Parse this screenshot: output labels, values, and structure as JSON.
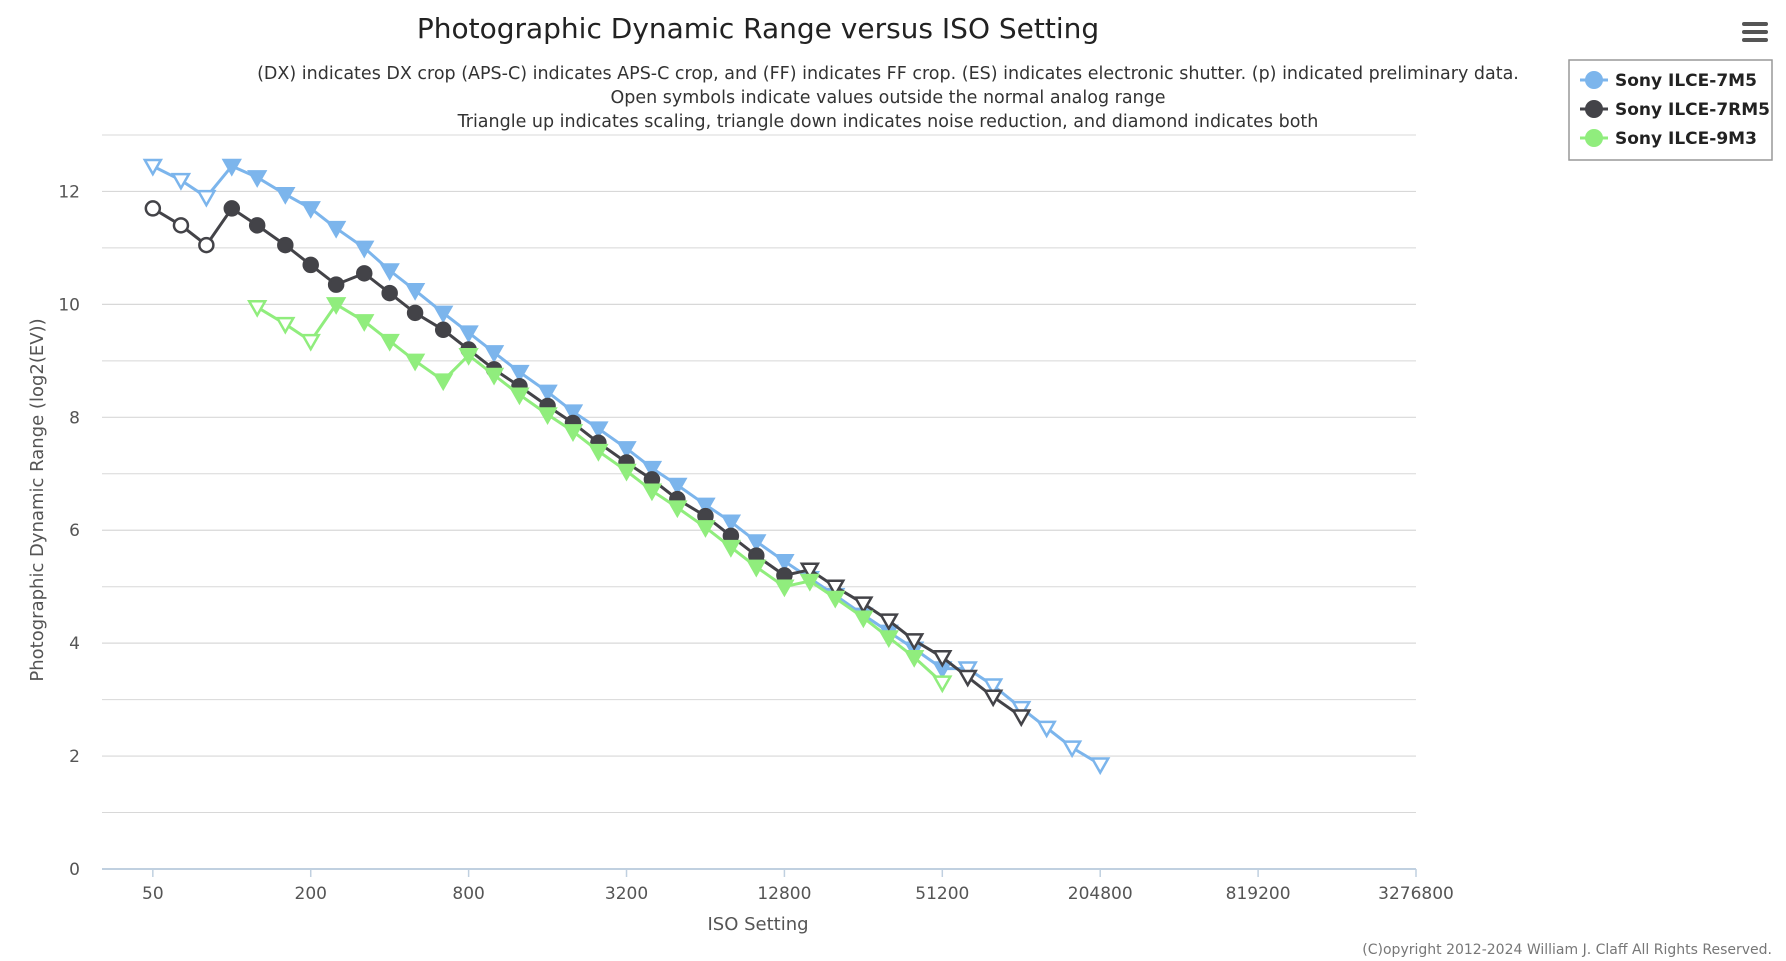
{
  "colors": {
    "grid": "#d8d8d8",
    "axis": "#c0d0e0",
    "legend_border": "#999999"
  },
  "menu": {
    "icon": "hamburger-menu-icon"
  },
  "credit": "(C)opyright 2012-2024 William J. Claff All Rights Reserved.",
  "chart_data": {
    "type": "line",
    "title": "Photographic Dynamic Range versus ISO Setting",
    "subtitle": [
      "(DX) indicates DX crop (APS-C) indicates APS-C crop, and (FF) indicates FF crop. (ES) indicates electronic shutter. (p) indicated preliminary data.",
      "Open symbols indicate values outside the normal analog range",
      "Triangle up indicates scaling, triangle down indicates noise reduction, and diamond indicates both"
    ],
    "xlabel": "ISO Setting",
    "ylabel": "Photographic Dynamic Range (log2(EV))",
    "x_scale": "log2",
    "xlim": [
      32,
      3276800
    ],
    "ylim": [
      0,
      13
    ],
    "x_ticks": [
      50,
      200,
      800,
      3200,
      12800,
      51200,
      204800,
      819200,
      3276800
    ],
    "y_ticks": [
      0,
      2,
      4,
      6,
      8,
      10,
      12
    ],
    "grid": true,
    "legend_position": "top-right",
    "series": [
      {
        "name": "Sony ILCE-7M5",
        "color": "#7cb5ec",
        "points": [
          {
            "x": 50,
            "y": 12.45,
            "m": "tri-down",
            "open": true
          },
          {
            "x": 64,
            "y": 12.2,
            "m": "tri-down",
            "open": true
          },
          {
            "x": 80,
            "y": 11.9,
            "m": "tri-down",
            "open": true
          },
          {
            "x": 100,
            "y": 12.45,
            "m": "tri-down",
            "open": false
          },
          {
            "x": 125,
            "y": 12.25,
            "m": "tri-down",
            "open": false
          },
          {
            "x": 160,
            "y": 11.95,
            "m": "tri-down",
            "open": false
          },
          {
            "x": 200,
            "y": 11.7,
            "m": "tri-down",
            "open": false
          },
          {
            "x": 250,
            "y": 11.35,
            "m": "tri-down",
            "open": false
          },
          {
            "x": 320,
            "y": 11.0,
            "m": "tri-down",
            "open": false
          },
          {
            "x": 400,
            "y": 10.6,
            "m": "tri-down",
            "open": false
          },
          {
            "x": 500,
            "y": 10.25,
            "m": "tri-down",
            "open": false
          },
          {
            "x": 640,
            "y": 9.85,
            "m": "tri-down",
            "open": false
          },
          {
            "x": 800,
            "y": 9.5,
            "m": "tri-down",
            "open": false
          },
          {
            "x": 1000,
            "y": 9.15,
            "m": "tri-down",
            "open": false
          },
          {
            "x": 1250,
            "y": 8.8,
            "m": "tri-down",
            "open": false
          },
          {
            "x": 1600,
            "y": 8.45,
            "m": "tri-down",
            "open": false
          },
          {
            "x": 2000,
            "y": 8.1,
            "m": "tri-down",
            "open": false
          },
          {
            "x": 2500,
            "y": 7.8,
            "m": "tri-down",
            "open": false
          },
          {
            "x": 3200,
            "y": 7.45,
            "m": "tri-down",
            "open": false
          },
          {
            "x": 4000,
            "y": 7.1,
            "m": "tri-down",
            "open": false
          },
          {
            "x": 5000,
            "y": 6.8,
            "m": "tri-down",
            "open": false
          },
          {
            "x": 6400,
            "y": 6.45,
            "m": "tri-down",
            "open": false
          },
          {
            "x": 8000,
            "y": 6.15,
            "m": "tri-down",
            "open": false
          },
          {
            "x": 10000,
            "y": 5.8,
            "m": "tri-down",
            "open": false
          },
          {
            "x": 12800,
            "y": 5.45,
            "m": "tri-down",
            "open": false
          },
          {
            "x": 16000,
            "y": 5.15,
            "m": "tri-down",
            "open": false
          },
          {
            "x": 20000,
            "y": 4.85,
            "m": "tri-down",
            "open": false
          },
          {
            "x": 25600,
            "y": 4.5,
            "m": "tri-down",
            "open": false
          },
          {
            "x": 32000,
            "y": 4.2,
            "m": "tri-down",
            "open": false
          },
          {
            "x": 40000,
            "y": 3.9,
            "m": "tri-down",
            "open": false
          },
          {
            "x": 51200,
            "y": 3.55,
            "m": "tri-down",
            "open": false
          },
          {
            "x": 64000,
            "y": 3.55,
            "m": "tri-down",
            "open": true
          },
          {
            "x": 80000,
            "y": 3.25,
            "m": "tri-down",
            "open": true
          },
          {
            "x": 102400,
            "y": 2.85,
            "m": "tri-down",
            "open": true
          },
          {
            "x": 128000,
            "y": 2.5,
            "m": "tri-down",
            "open": true
          },
          {
            "x": 160000,
            "y": 2.15,
            "m": "tri-down",
            "open": true
          },
          {
            "x": 204800,
            "y": 1.85,
            "m": "tri-down",
            "open": true
          }
        ]
      },
      {
        "name": "Sony ILCE-7RM5",
        "color": "#434348",
        "points": [
          {
            "x": 50,
            "y": 11.7,
            "m": "circle",
            "open": true
          },
          {
            "x": 64,
            "y": 11.4,
            "m": "circle",
            "open": true
          },
          {
            "x": 80,
            "y": 11.05,
            "m": "circle",
            "open": true
          },
          {
            "x": 100,
            "y": 11.7,
            "m": "circle",
            "open": false
          },
          {
            "x": 125,
            "y": 11.4,
            "m": "circle",
            "open": false
          },
          {
            "x": 160,
            "y": 11.05,
            "m": "circle",
            "open": false
          },
          {
            "x": 200,
            "y": 10.7,
            "m": "circle",
            "open": false
          },
          {
            "x": 250,
            "y": 10.35,
            "m": "circle",
            "open": false
          },
          {
            "x": 320,
            "y": 10.55,
            "m": "circle",
            "open": false
          },
          {
            "x": 400,
            "y": 10.2,
            "m": "circle",
            "open": false
          },
          {
            "x": 500,
            "y": 9.85,
            "m": "circle",
            "open": false
          },
          {
            "x": 640,
            "y": 9.55,
            "m": "circle",
            "open": false
          },
          {
            "x": 800,
            "y": 9.2,
            "m": "circle",
            "open": false
          },
          {
            "x": 1000,
            "y": 8.85,
            "m": "circle",
            "open": false
          },
          {
            "x": 1250,
            "y": 8.55,
            "m": "circle",
            "open": false
          },
          {
            "x": 1600,
            "y": 8.2,
            "m": "circle",
            "open": false
          },
          {
            "x": 2000,
            "y": 7.9,
            "m": "circle",
            "open": false
          },
          {
            "x": 2500,
            "y": 7.55,
            "m": "circle",
            "open": false
          },
          {
            "x": 3200,
            "y": 7.2,
            "m": "circle",
            "open": false
          },
          {
            "x": 4000,
            "y": 6.9,
            "m": "circle",
            "open": false
          },
          {
            "x": 5000,
            "y": 6.55,
            "m": "circle",
            "open": false
          },
          {
            "x": 6400,
            "y": 6.25,
            "m": "circle",
            "open": false
          },
          {
            "x": 8000,
            "y": 5.9,
            "m": "circle",
            "open": false
          },
          {
            "x": 10000,
            "y": 5.55,
            "m": "circle",
            "open": false
          },
          {
            "x": 12800,
            "y": 5.2,
            "m": "circle",
            "open": false
          },
          {
            "x": 16000,
            "y": 5.3,
            "m": "tri-down",
            "open": true
          },
          {
            "x": 20000,
            "y": 5.0,
            "m": "tri-down",
            "open": true
          },
          {
            "x": 25600,
            "y": 4.7,
            "m": "tri-down",
            "open": true
          },
          {
            "x": 32000,
            "y": 4.4,
            "m": "tri-down",
            "open": true
          },
          {
            "x": 40000,
            "y": 4.05,
            "m": "tri-down",
            "open": true
          },
          {
            "x": 51200,
            "y": 3.75,
            "m": "tri-down",
            "open": true
          },
          {
            "x": 64000,
            "y": 3.4,
            "m": "tri-down",
            "open": true
          },
          {
            "x": 80000,
            "y": 3.05,
            "m": "tri-down",
            "open": true
          },
          {
            "x": 102400,
            "y": 2.7,
            "m": "tri-down",
            "open": true
          }
        ]
      },
      {
        "name": "Sony ILCE-9M3",
        "color": "#90ed7d",
        "points": [
          {
            "x": 125,
            "y": 9.95,
            "m": "tri-down",
            "open": true
          },
          {
            "x": 160,
            "y": 9.65,
            "m": "tri-down",
            "open": true
          },
          {
            "x": 200,
            "y": 9.35,
            "m": "tri-down",
            "open": true
          },
          {
            "x": 250,
            "y": 10.0,
            "m": "tri-down",
            "open": false
          },
          {
            "x": 320,
            "y": 9.7,
            "m": "tri-down",
            "open": false
          },
          {
            "x": 400,
            "y": 9.35,
            "m": "tri-down",
            "open": false
          },
          {
            "x": 500,
            "y": 9.0,
            "m": "tri-down",
            "open": false
          },
          {
            "x": 640,
            "y": 8.65,
            "m": "tri-down",
            "open": false
          },
          {
            "x": 800,
            "y": 9.1,
            "m": "tri-down",
            "open": false
          },
          {
            "x": 1000,
            "y": 8.75,
            "m": "tri-down",
            "open": false
          },
          {
            "x": 1250,
            "y": 8.4,
            "m": "tri-down",
            "open": false
          },
          {
            "x": 1600,
            "y": 8.05,
            "m": "tri-down",
            "open": false
          },
          {
            "x": 2000,
            "y": 7.75,
            "m": "tri-down",
            "open": false
          },
          {
            "x": 2500,
            "y": 7.4,
            "m": "tri-down",
            "open": false
          },
          {
            "x": 3200,
            "y": 7.05,
            "m": "tri-down",
            "open": false
          },
          {
            "x": 4000,
            "y": 6.7,
            "m": "tri-down",
            "open": false
          },
          {
            "x": 5000,
            "y": 6.4,
            "m": "tri-down",
            "open": false
          },
          {
            "x": 6400,
            "y": 6.05,
            "m": "tri-down",
            "open": false
          },
          {
            "x": 8000,
            "y": 5.7,
            "m": "tri-down",
            "open": false
          },
          {
            "x": 10000,
            "y": 5.35,
            "m": "tri-down",
            "open": false
          },
          {
            "x": 12800,
            "y": 5.0,
            "m": "tri-down",
            "open": false
          },
          {
            "x": 16000,
            "y": 5.1,
            "m": "tri-down",
            "open": false
          },
          {
            "x": 20000,
            "y": 4.8,
            "m": "tri-down",
            "open": false
          },
          {
            "x": 25600,
            "y": 4.45,
            "m": "tri-down",
            "open": false
          },
          {
            "x": 32000,
            "y": 4.1,
            "m": "tri-down",
            "open": false
          },
          {
            "x": 40000,
            "y": 3.75,
            "m": "tri-down",
            "open": false
          },
          {
            "x": 51200,
            "y": 3.3,
            "m": "tri-down",
            "open": true
          }
        ]
      }
    ]
  }
}
